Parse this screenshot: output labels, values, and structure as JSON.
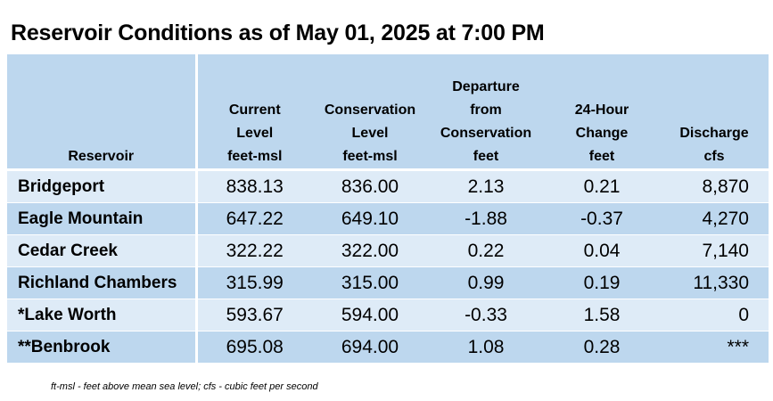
{
  "title": "Reservoir Conditions as of May 01, 2025 at 7:00 PM",
  "columns": [
    {
      "lines": [
        "Reservoir"
      ]
    },
    {
      "lines": [
        "Current",
        "Level",
        "feet-msl"
      ]
    },
    {
      "lines": [
        "Conservation",
        "Level",
        "feet-msl"
      ]
    },
    {
      "lines": [
        "Departure",
        "from",
        "Conservation",
        "feet"
      ]
    },
    {
      "lines": [
        "24-Hour",
        "Change",
        "feet"
      ]
    },
    {
      "lines": [
        "Discharge",
        "cfs"
      ]
    }
  ],
  "rows": [
    {
      "name": "Bridgeport",
      "current": "838.13",
      "conservation": "836.00",
      "departure": "2.13",
      "change": "0.21",
      "discharge": "8,870"
    },
    {
      "name": "Eagle Mountain",
      "current": "647.22",
      "conservation": "649.10",
      "departure": "-1.88",
      "change": "-0.37",
      "discharge": "4,270"
    },
    {
      "name": "Cedar Creek",
      "current": "322.22",
      "conservation": "322.00",
      "departure": "0.22",
      "change": "0.04",
      "discharge": "7,140"
    },
    {
      "name": "Richland Chambers",
      "current": "315.99",
      "conservation": "315.00",
      "departure": "0.99",
      "change": "0.19",
      "discharge": "11,330"
    },
    {
      "name": "*Lake Worth",
      "current": "593.67",
      "conservation": "594.00",
      "departure": "-0.33",
      "change": "1.58",
      "discharge": "0"
    },
    {
      "name": "**Benbrook",
      "current": "695.08",
      "conservation": "694.00",
      "departure": "1.08",
      "change": "0.28",
      "discharge": "***"
    }
  ],
  "footnote": "ft-msl - feet above mean sea level; cfs - cubic feet per second",
  "colors": {
    "header_bg": "#bdd7ee",
    "row_light": "#deebf7",
    "row_dark": "#bdd7ee"
  }
}
